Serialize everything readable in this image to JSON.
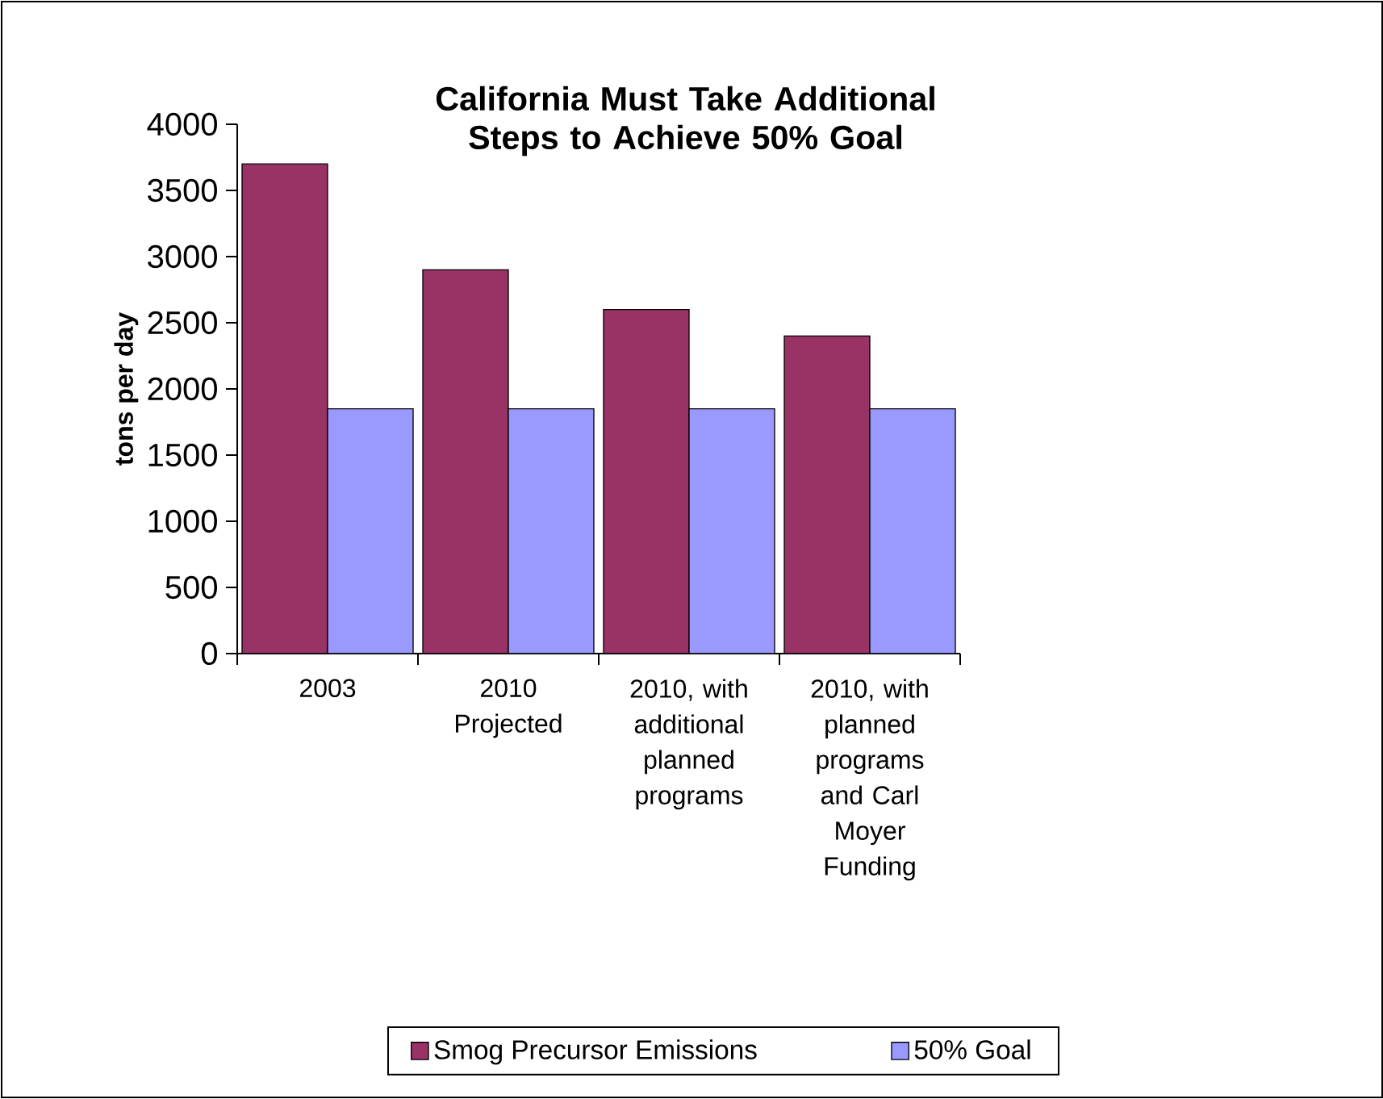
{
  "chart_data": {
    "type": "bar",
    "title": "California Must Take Additional Steps to Achieve 50% Goal",
    "ylabel": "tons per day",
    "categories": [
      "2003",
      "2010 Projected",
      "2010, with additional planned programs",
      "2010, with planned programs and Carl Moyer Funding"
    ],
    "series": [
      {
        "name": "Smog Precursor Emissions",
        "color": "#993366",
        "values": [
          3700,
          2900,
          2600,
          2400
        ]
      },
      {
        "name": "50% Goal",
        "color": "#9999ff",
        "values": [
          1850,
          1850,
          1850,
          1850
        ]
      }
    ],
    "ylim": [
      0,
      4000
    ],
    "yticks": [
      0,
      500,
      1000,
      1500,
      2000,
      2500,
      3000,
      3500,
      4000
    ],
    "grid": false,
    "legend": "bottom right"
  }
}
